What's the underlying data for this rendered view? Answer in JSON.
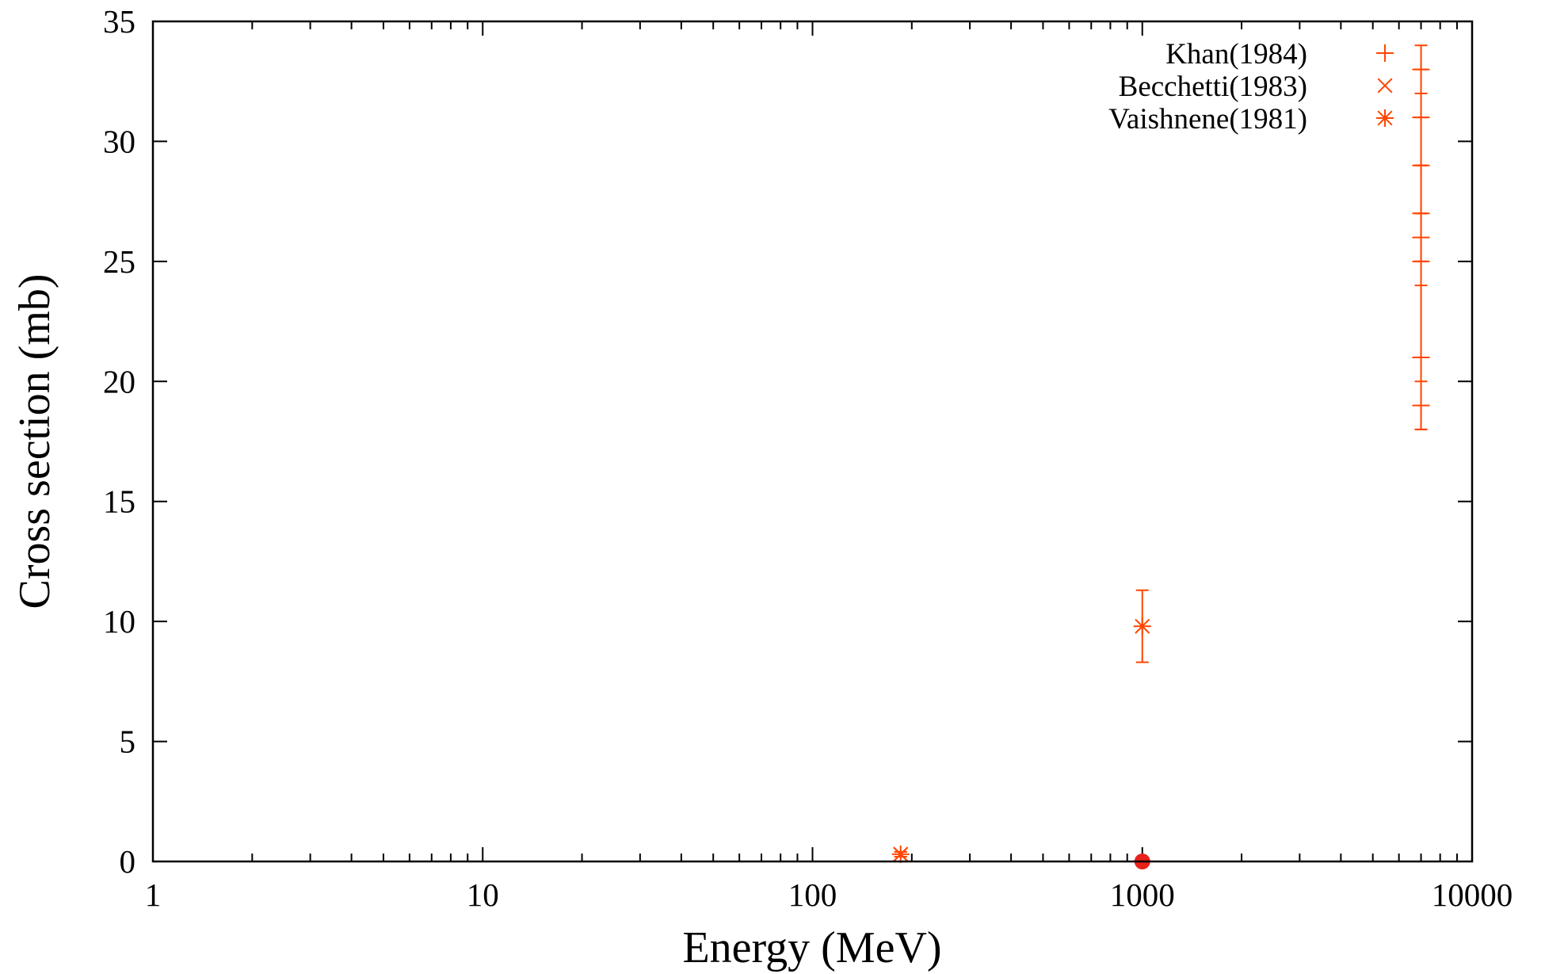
{
  "chart_data": {
    "type": "scatter",
    "title": "",
    "xlabel": "Energy (MeV)",
    "ylabel": "Cross section (mb)",
    "xscale": "log",
    "xlim": [
      1,
      10000
    ],
    "ylim": [
      0,
      35
    ],
    "x_ticks": [
      1,
      10,
      100,
      1000,
      10000
    ],
    "x_tick_labels": [
      "1",
      "10",
      "100",
      "1000",
      "10000"
    ],
    "y_ticks": [
      0,
      5,
      10,
      15,
      20,
      25,
      30,
      35
    ],
    "y_tick_labels": [
      "0",
      "5",
      "10",
      "15",
      "20",
      "25",
      "30",
      "35"
    ],
    "grid": false,
    "legend_position": "top-right",
    "series": [
      {
        "name": "Khan(1984)",
        "marker": "plus",
        "color": "#ff4500",
        "points": [
          {
            "x": 7000,
            "y": 33,
            "err": 1
          },
          {
            "x": 7000,
            "y": 31,
            "err": 2
          },
          {
            "x": 7000,
            "y": 29,
            "err": 2
          },
          {
            "x": 7000,
            "y": 27,
            "err": 2
          },
          {
            "x": 7000,
            "y": 26,
            "err": 1
          },
          {
            "x": 7000,
            "y": 25,
            "err": 4
          },
          {
            "x": 7000,
            "y": 21,
            "err": 3
          },
          {
            "x": 7000,
            "y": 19,
            "err": 1
          }
        ]
      },
      {
        "name": "Becchetti(1983)",
        "marker": "cross",
        "color": "#ff4500",
        "points": [
          {
            "x": 185,
            "y": 0.3,
            "err": 0.1
          }
        ]
      },
      {
        "name": "Vaishnene(1981)",
        "marker": "asterisk",
        "color": "#ff4500",
        "points": [
          {
            "x": 185,
            "y": 0.3,
            "err": 0.1
          },
          {
            "x": 1000,
            "y": 9.8,
            "err": 1.5
          }
        ]
      }
    ],
    "extra_points": [
      {
        "x": 1000,
        "y": 0,
        "marker": "filled-circle",
        "color": "#e8231a"
      }
    ]
  }
}
